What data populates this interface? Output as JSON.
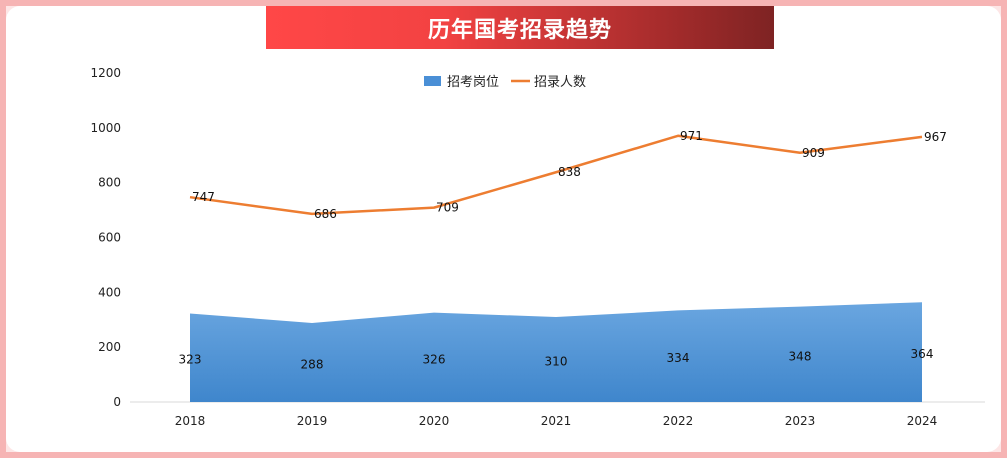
{
  "chart_data": {
    "type": "line",
    "title": "历年国考招录趋势",
    "categories": [
      "2018",
      "2019",
      "2020",
      "2021",
      "2022",
      "2023",
      "2024"
    ],
    "series": [
      {
        "name": "招考岗位",
        "render": "area",
        "color": "#4a8fd6",
        "values": [
          323,
          288,
          326,
          310,
          334,
          348,
          364
        ]
      },
      {
        "name": "招录人数",
        "render": "line",
        "color": "#ed7d31",
        "values": [
          747,
          686,
          709,
          838,
          971,
          909,
          967
        ]
      }
    ],
    "yticks": [
      "0",
      "200",
      "400",
      "600",
      "800",
      "1000",
      "1200"
    ],
    "ylim": [
      0,
      1200
    ],
    "legend_position": "top-center",
    "grid": false,
    "data_labels": true
  }
}
